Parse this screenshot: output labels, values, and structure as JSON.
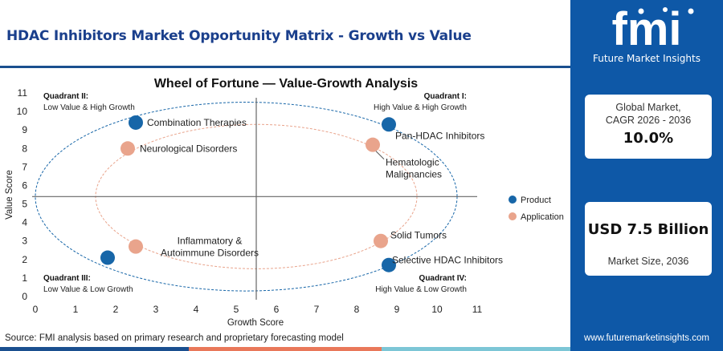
{
  "header": {
    "title": "HDAC Inhibitors Market Opportunity Matrix - Growth vs Value"
  },
  "sidebar": {
    "logo_text": "fmi",
    "logo_subtitle": "Future Market Insights",
    "cagr_label": "Global Market,\nCAGR 2026 - 2036",
    "cagr_value": "10.0%",
    "size_value": "USD 7.5 Billion",
    "size_label": "Market Size, 2036",
    "website": "www.futuremarketinsights.com"
  },
  "source": "Source: FMI analysis based on primary research and proprietary forecasting model",
  "colors": {
    "product": "#1766a8",
    "application": "#e9a48c",
    "brand": "#0e58a7",
    "title": "#1a3f8c"
  },
  "chart_data": {
    "type": "scatter",
    "title": "Wheel of Fortune — Value-Growth Analysis",
    "xlabel": "Growth Score",
    "ylabel": "Value Score",
    "xlim": [
      0,
      11
    ],
    "ylim": [
      0,
      11
    ],
    "xticks": [
      0,
      1,
      2,
      3,
      4,
      5,
      6,
      7,
      8,
      9,
      10,
      11
    ],
    "yticks": [
      0,
      1,
      2,
      3,
      4,
      5,
      6,
      7,
      8,
      9,
      10,
      11
    ],
    "divider": {
      "x": 5.5,
      "y": 5.4
    },
    "legend": {
      "placement": "right",
      "entries": [
        "Product",
        "Application"
      ]
    },
    "quadrants": [
      {
        "name": "Quadrant II:",
        "desc": "Low Value & High Growth",
        "pos": "top-left"
      },
      {
        "name": "Quadrant I:",
        "desc": "High Value & High Growth",
        "pos": "top-right"
      },
      {
        "name": "Quadrant III:",
        "desc": "Low Value & Low Growth",
        "pos": "bottom-left"
      },
      {
        "name": "Quadrant IV:",
        "desc": "High Value & Low Growth",
        "pos": "bottom-right"
      }
    ],
    "series": [
      {
        "name": "Product",
        "points": [
          {
            "label": "Combination Therapies",
            "x": 2.5,
            "y": 9.4
          },
          {
            "label": "Pan-HDAC Inhibitors",
            "x": 8.8,
            "y": 9.3
          },
          {
            "label": "Selective HDAC Inhibitors",
            "x": 8.8,
            "y": 1.7
          },
          {
            "label": "",
            "x": 1.8,
            "y": 2.1
          }
        ]
      },
      {
        "name": "Application",
        "points": [
          {
            "label": "Neurological Disorders",
            "x": 2.3,
            "y": 8.0
          },
          {
            "label": "Hematologic\nMalignancies",
            "x": 8.4,
            "y": 8.2
          },
          {
            "label": "Solid Tumors",
            "x": 8.6,
            "y": 3.0
          },
          {
            "label": "Inflammatory &\nAutoimmune Disorders",
            "x": 2.5,
            "y": 2.7
          }
        ]
      }
    ],
    "ellipses": [
      {
        "series": "Product",
        "cx": 5.25,
        "cy": 5.4,
        "rx": 5.25,
        "ry": 5.1
      },
      {
        "series": "Application",
        "cx": 5.5,
        "cy": 5.4,
        "rx": 4.0,
        "ry": 3.9
      }
    ]
  }
}
